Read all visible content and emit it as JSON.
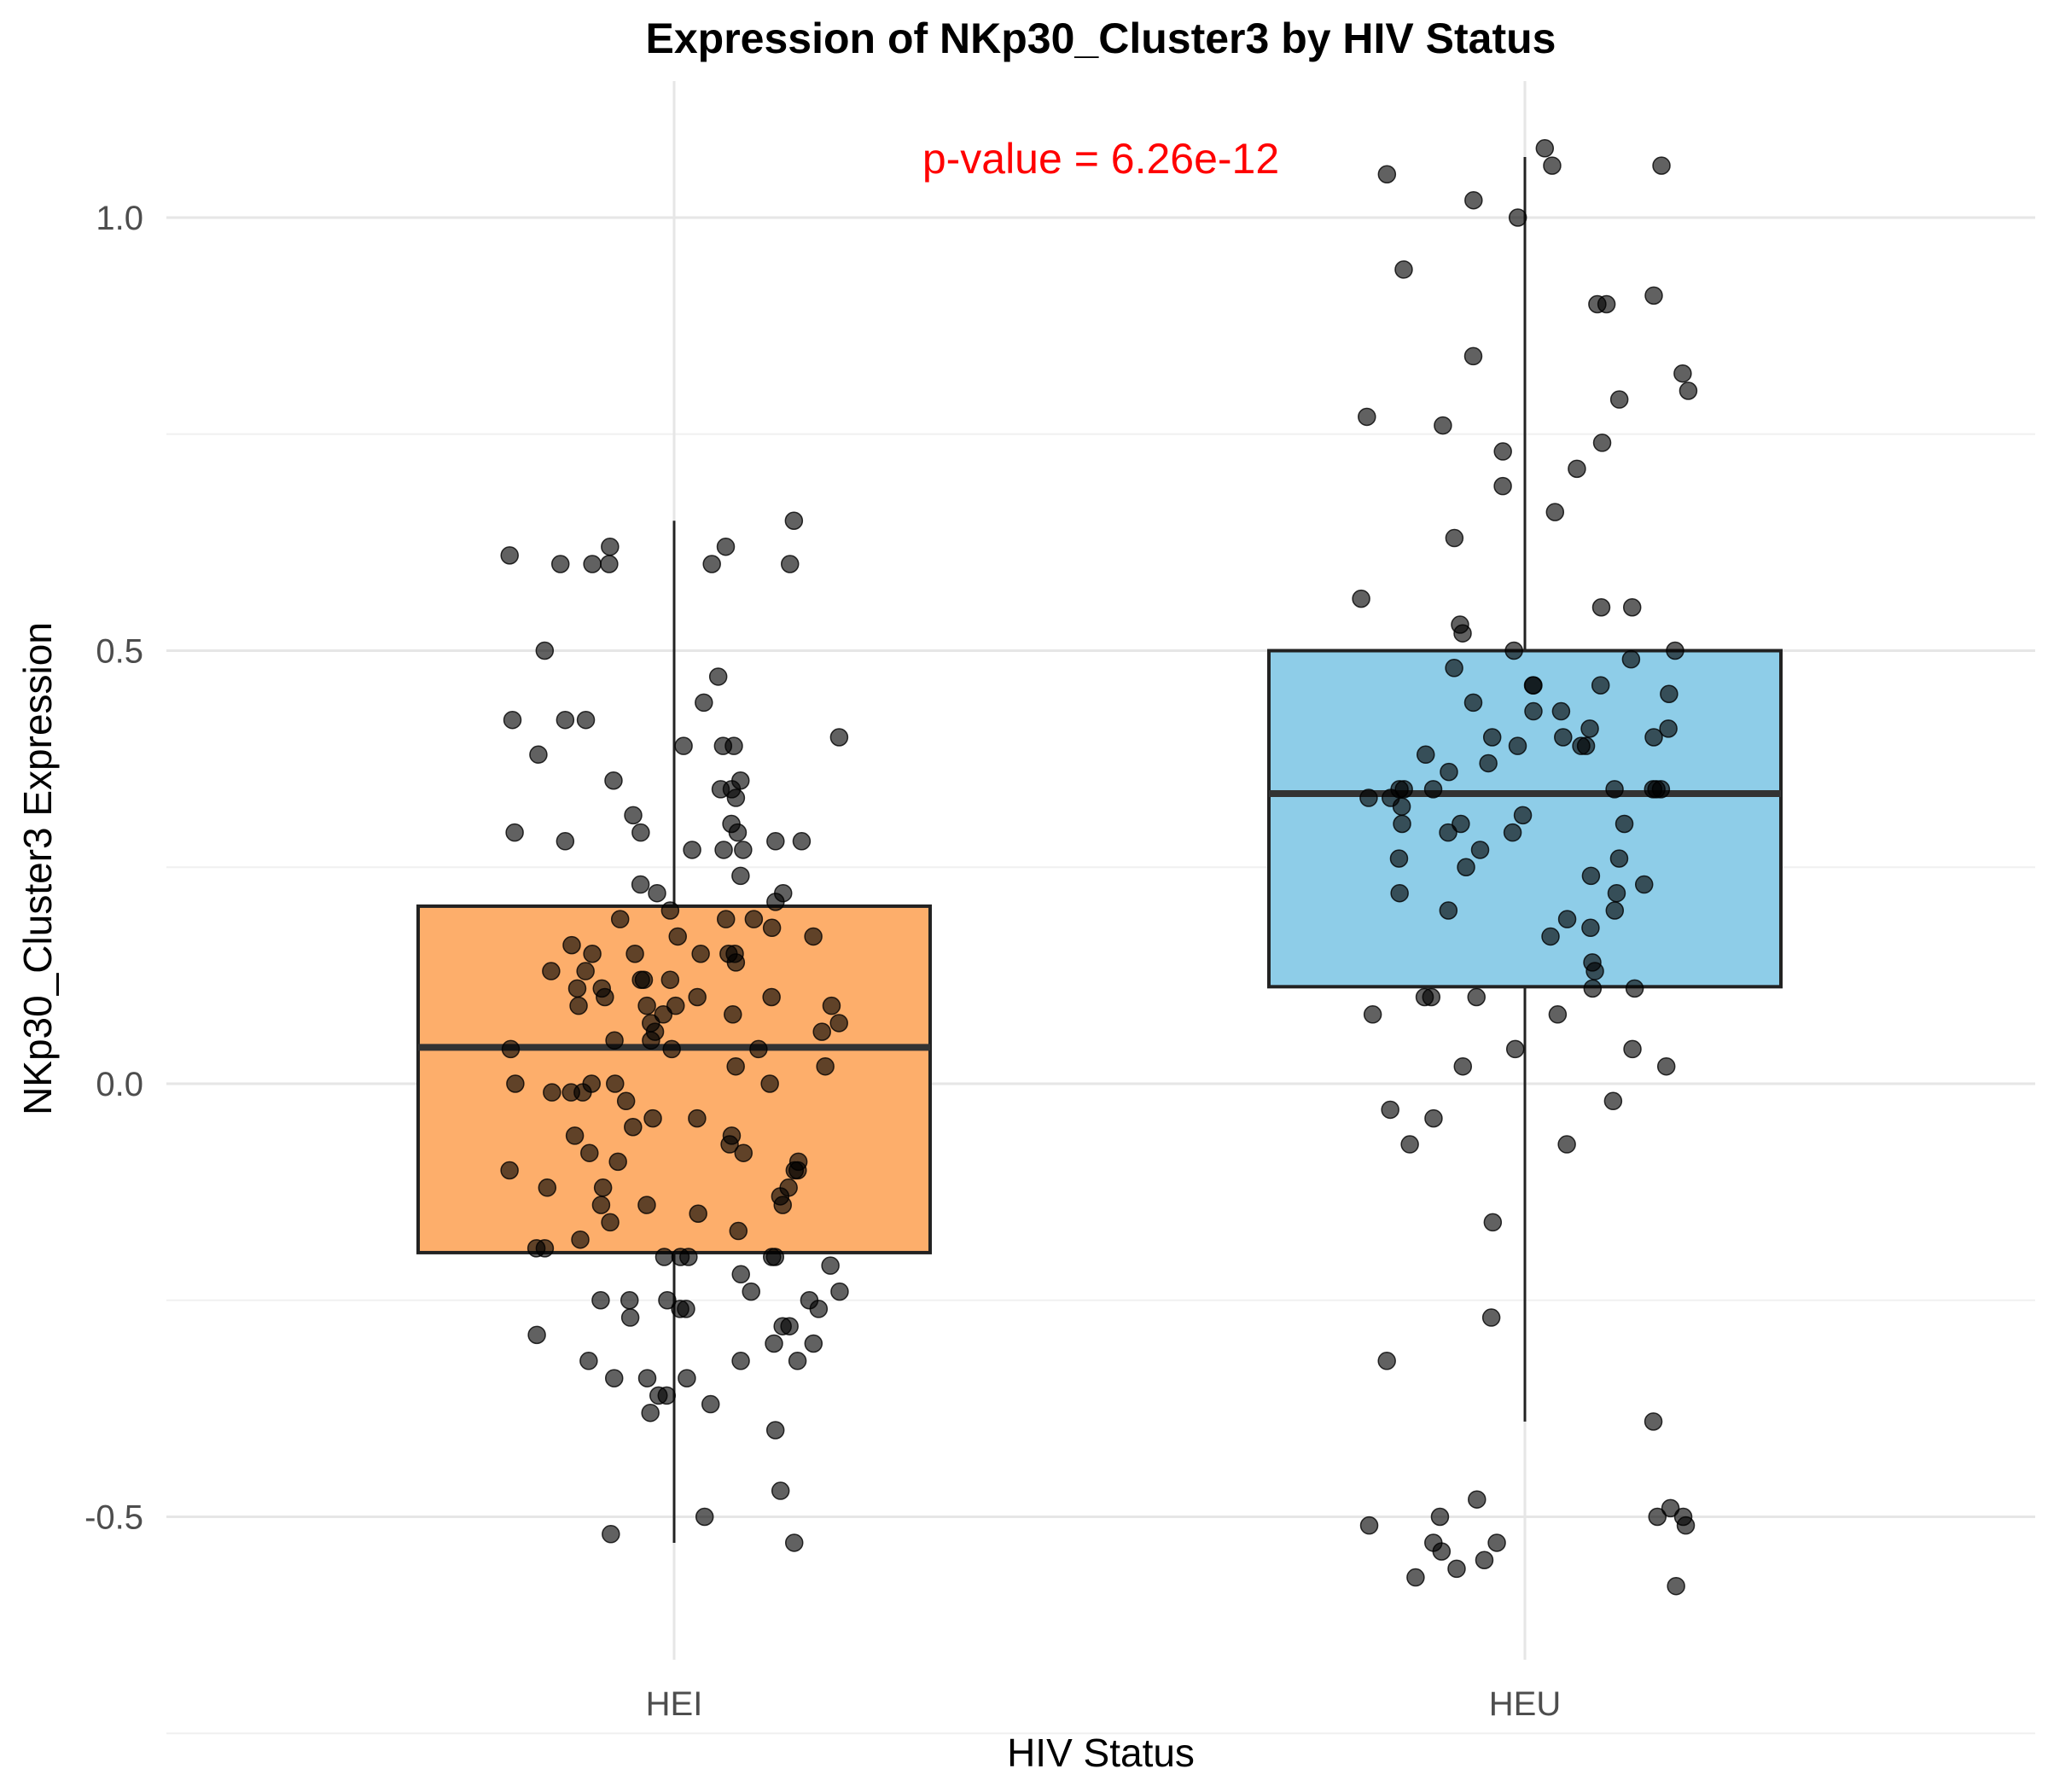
{
  "chart_data": {
    "type": "boxplot",
    "title": "Expression of NKp30_Cluster3 by HIV Status",
    "xlabel": "HIV Status",
    "ylabel": "NKp30_Cluster3 Expression",
    "categories": [
      "HEI",
      "HEU"
    ],
    "y_ticks": [
      "-0.5",
      "0.0",
      "0.5",
      "1.0"
    ],
    "ylim": [
      -0.66,
      1.16
    ],
    "grid": true,
    "annotation": {
      "text": "p-value = 6.26e-12",
      "color": "#ff0000"
    },
    "boxes": [
      {
        "category": "HEI",
        "q1": -0.195,
        "median": 0.042,
        "q3": 0.205,
        "whisker_low": -0.53,
        "whisker_high": 0.65,
        "color": "#fdae6b"
      },
      {
        "category": "HEU",
        "q1": 0.112,
        "median": 0.335,
        "q3": 0.5,
        "whisker_low": -0.39,
        "whisker_high": 1.07,
        "color": "#8ecde8"
      }
    ],
    "points": [
      {
        "category": "HEI",
        "values": [
          0.62,
          0.6,
          0.47,
          0.4,
          0.39,
          0.34,
          0.28,
          0.28,
          0.27,
          0.22,
          0.19,
          0.19,
          0.18,
          0.16,
          0.15,
          0.13,
          0.11,
          0.0,
          -0.1,
          -0.12,
          -0.19,
          -0.2,
          -0.24,
          -0.25,
          -0.25,
          -0.27,
          -0.3,
          -0.32,
          -0.34,
          -0.38,
          -0.47,
          0.42,
          0.6,
          0.35,
          0.31,
          0.09,
          0.09,
          0.08,
          0.04,
          -0.01,
          -0.04,
          -0.09,
          -0.13,
          -0.16,
          -0.26,
          -0.28,
          -0.32,
          0.5,
          0.44,
          0.38,
          0.29,
          0.29,
          0.24,
          0.15,
          0.15,
          0.12,
          0.09,
          0.06,
          0.05,
          0.0,
          0.0,
          -0.01,
          -0.07,
          -0.1,
          -0.12,
          -0.14,
          -0.14,
          -0.18,
          -0.2,
          -0.25,
          -0.34,
          0.6,
          0.6,
          0.35,
          0.29,
          0.27,
          0.22,
          0.17,
          0.15,
          0.1,
          0.12,
          0.02,
          -0.06,
          -0.2,
          -0.25,
          -0.37,
          0.42,
          0.34,
          0.27,
          0.23,
          0.21,
          0.14,
          0.11,
          0.1,
          0.07,
          0.04,
          -0.01,
          -0.04,
          -0.06,
          -0.1,
          -0.15,
          -0.17,
          -0.19,
          -0.26,
          -0.29,
          -0.32,
          -0.36,
          -0.4,
          -0.52,
          -0.53,
          0.42,
          0.28,
          0.12,
          0.07,
          0.04,
          0.0,
          -0.08,
          -0.14,
          -0.2,
          -0.24,
          -0.5,
          0.65,
          0.62,
          0.61,
          0.6,
          0.39,
          0.39,
          0.33,
          0.3,
          0.2,
          0.19,
          0.17,
          0.15,
          0.13,
          0.1,
          0.09,
          0.08,
          0.06,
          0.05,
          0.02,
          -0.02,
          -0.05,
          -0.08,
          -0.09,
          -0.12,
          -0.2,
          -0.21,
          -0.22,
          -0.26,
          -0.28,
          -0.3,
          -0.34,
          -0.36
        ]
      },
      {
        "category": "HEU",
        "values": [
          1.0,
          0.94,
          0.91,
          0.84,
          0.56,
          0.43,
          0.37,
          0.33,
          0.3,
          0.26,
          0.22,
          0.2,
          0.13,
          0.14,
          0.1,
          0.1,
          0.04,
          0.02,
          0.02,
          -0.03,
          -0.39,
          -0.48,
          -0.51,
          -0.53,
          -0.54,
          1.06,
          0.82,
          0.76,
          0.74,
          0.53,
          0.49,
          0.48,
          0.46,
          0.46,
          0.43,
          0.41,
          0.39,
          0.36,
          0.34,
          0.34,
          0.33,
          0.32,
          0.31,
          0.29,
          0.27,
          0.24,
          0.19,
          0.17,
          1.02,
          0.73,
          0.69,
          0.66,
          0.52,
          0.45,
          0.41,
          0.4,
          0.4,
          0.34,
          0.2,
          0.08,
          -0.16,
          -0.27,
          -0.49,
          -0.5,
          -0.51,
          -0.53,
          -0.55,
          -0.57,
          -0.5,
          -0.56,
          -0.58,
          0.9,
          0.8,
          0.79,
          0.5,
          0.39,
          0.34,
          0.3,
          0.26,
          0.08,
          -0.07,
          1.08,
          1.05,
          1.06,
          0.9,
          0.77,
          0.71,
          0.63,
          0.55,
          0.55,
          0.5,
          0.46,
          0.4,
          0.38,
          0.34,
          0.34,
          0.34,
          0.3,
          0.29,
          0.25,
          0.23,
          0.22,
          0.18,
          0.11,
          0.1,
          0.11,
          0.04,
          -0.02,
          -0.04,
          -0.07,
          -0.32,
          -0.5,
          0.44,
          0.39
        ]
      }
    ]
  }
}
